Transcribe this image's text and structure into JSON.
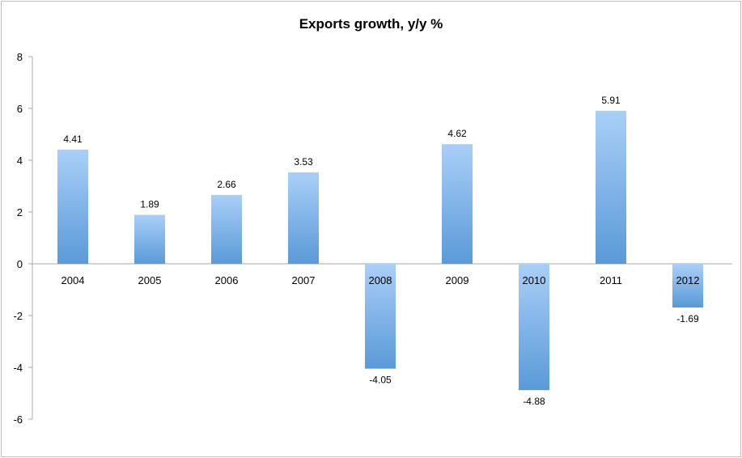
{
  "chart_data": {
    "type": "bar",
    "title": "Exports growth, y/y %",
    "xlabel": "",
    "ylabel": "",
    "categories": [
      "2004",
      "2005",
      "2006",
      "2007",
      "2008",
      "2009",
      "2010",
      "2011",
      "2012"
    ],
    "values": [
      4.41,
      1.89,
      2.66,
      3.53,
      -4.05,
      4.62,
      -4.88,
      5.91,
      -1.69
    ],
    "data_labels": [
      "4.41",
      "1.89",
      "2.66",
      "3.53",
      "-4.05",
      "4.62",
      "-4.88",
      "5.91",
      "-1.69"
    ],
    "ylim": [
      -6,
      8
    ],
    "yticks": [
      8,
      6,
      4,
      2,
      0,
      -2,
      -4,
      -6
    ],
    "grid": false,
    "legend": "none",
    "colors": {
      "bar_top": "#a9cff8",
      "bar_bottom": "#5a9ad8",
      "axis": "#aaaaaa"
    }
  }
}
